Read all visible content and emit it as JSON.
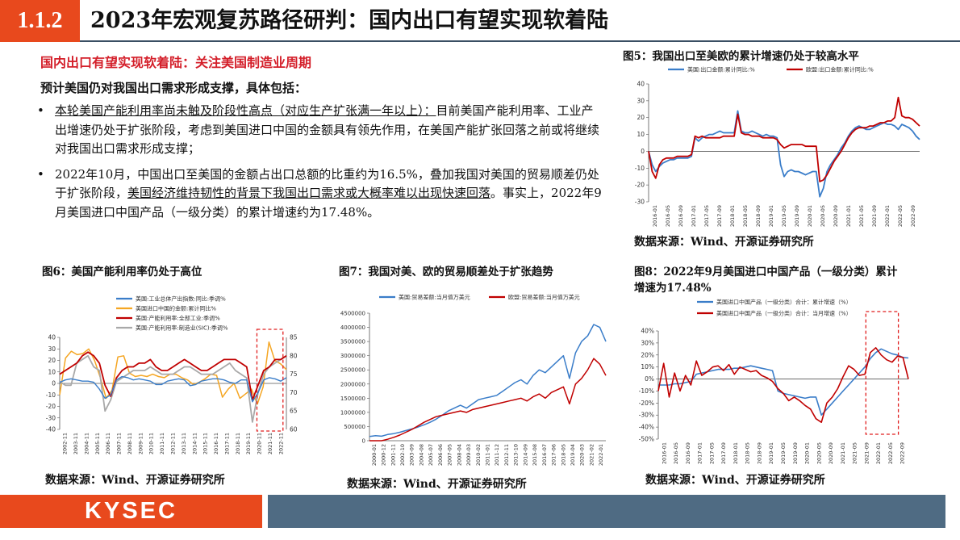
{
  "header": {
    "section": "1.1.2",
    "title": "2023年宏观复苏路径研判：国内出口有望实现软着陆"
  },
  "subheading": "国内出口有望实现软着陆：关注美国制造业周期",
  "lead": "预计美国仍对我国出口需求形成支撑，具体包括：",
  "bullet_symbol": "•",
  "bullets": [
    {
      "u": "本轮美国产能利用率尚未触及阶段性高点（对应生产扩张满一年以上）：",
      "t": "目前美国产能利用率、工业产出增速仍处于扩张阶段，考虑到美国进口中国的金额具有领先作用，在美国产能扩张回落之前或将继续对我国出口需求形成支撑；"
    },
    {
      "t1": "2022年10月，中国出口至美国的金额占出口总额的比重约为16.5%，叠加我国对美国的贸易顺差仍处于扩张阶段，",
      "u": "美国经济维持韧性的背景下我国出口需求或大概率难以出现快速回落",
      "t2": "。事实上，2022年9月美国进口中国产品（一级分类）的累计增速约为17.48%。"
    }
  ],
  "figures": {
    "fig5": "图5：我国出口至美欧的累计增速仍处于较高水平",
    "fig6": "图6：美国产能利用率仍处于高位",
    "fig7": "图7：我国对美、欧的贸易顺差处于扩张趋势",
    "fig8_line1": "图8：2022年9月美国进口中国产品（一级分类）累计",
    "fig8_line2": "增速为17.48%"
  },
  "source": "数据来源：Wind、开源证券研究所",
  "footer": {
    "logo": "KYSEC"
  },
  "colors": {
    "accent": "#e8491d",
    "navy": "#3a4f63",
    "red": "#c00000",
    "blue": "#3a7dc9",
    "orange": "#f5a623",
    "grey": "#a9a9a9",
    "footer_grey": "#4f6b83"
  },
  "chart_data": [
    {
      "id": "fig5",
      "type": "line",
      "series": [
        {
          "name": "美国:出口金额:累计同比:%",
          "color": "#3a7dc9"
        },
        {
          "name": "欧盟:出口金额:累计同比:%",
          "color": "#c00000"
        }
      ],
      "x_ticks": [
        "2016-01",
        "2016-05",
        "2016-09",
        "2017-01",
        "2017-05",
        "2017-09",
        "2018-01",
        "2018-05",
        "2018-09",
        "2019-01",
        "2019-05",
        "2019-09",
        "2020-01",
        "2020-05",
        "2020-09",
        "2021-01",
        "2021-05",
        "2021-09",
        "2022-01",
        "2022-05",
        "2022-09"
      ],
      "ylim": [
        -30,
        40
      ],
      "y_ticks": [
        40,
        30,
        20,
        10,
        0,
        -10,
        -20,
        -30
      ],
      "us": [
        0,
        -8,
        -12,
        -9,
        -7,
        -6,
        -5,
        -5,
        -4,
        -4,
        -4,
        -4,
        -3,
        8,
        6,
        8,
        9,
        10,
        10,
        11,
        12,
        11,
        11,
        11,
        11,
        24,
        12,
        11,
        11,
        12,
        11,
        10,
        9,
        10,
        9,
        9,
        8,
        -8,
        -15,
        -12,
        -11,
        -12,
        -12,
        -13,
        -14,
        -13,
        -12,
        -12,
        -27,
        -22,
        -12,
        -8,
        -5,
        -2,
        2,
        5,
        9,
        12,
        14,
        15,
        14,
        13,
        13,
        14,
        15,
        16,
        17,
        16,
        16,
        15,
        13,
        16,
        15,
        14,
        12,
        9,
        7
      ],
      "eu": [
        0,
        -12,
        -16,
        -8,
        -5,
        -4,
        -4,
        -4,
        -3,
        -3,
        -3,
        -3,
        -2,
        9,
        8,
        9,
        8,
        8,
        8,
        8,
        8,
        9,
        9,
        9,
        9,
        22,
        11,
        10,
        10,
        9,
        9,
        9,
        8,
        8,
        8,
        8,
        7,
        4,
        2,
        3,
        4,
        4,
        4,
        4,
        3,
        3,
        3,
        3,
        -18,
        -17,
        -14,
        -10,
        -6,
        -3,
        0,
        4,
        8,
        11,
        13,
        14,
        14,
        14,
        15,
        15,
        16,
        17,
        17,
        18,
        18,
        20,
        32,
        21,
        20,
        20,
        19,
        17,
        15
      ]
    },
    {
      "id": "fig6",
      "type": "line",
      "series": [
        {
          "name": "美国:工业总体产出指数:同比:季调%",
          "color": "#3a7dc9",
          "axis": "left"
        },
        {
          "name": "美国进口中国的金额:累计同比%",
          "color": "#f5a623",
          "axis": "left"
        },
        {
          "name": "美国:产能利用率:全部工业:季调%",
          "color": "#c00000",
          "axis": "right"
        },
        {
          "name": "美国:产能利用率:制造业(SIC):季调%",
          "color": "#a9a9a9",
          "axis": "right"
        }
      ],
      "x_ticks": [
        "2002-11",
        "2003-11",
        "2004-11",
        "2005-11",
        "2006-11",
        "2007-11",
        "2008-11",
        "2009-11",
        "2010-11",
        "2011-11",
        "2012-11",
        "2013-11",
        "2014-11",
        "2015-11",
        "2016-11",
        "2017-11",
        "2018-11",
        "2019-11",
        "2020-11",
        "2021-11",
        "2022-11"
      ],
      "ylim_left": [
        -40,
        40
      ],
      "ylim_right": [
        60,
        85
      ],
      "y_ticks_left": [
        40,
        30,
        20,
        10,
        0,
        -10,
        -20,
        -30,
        -40
      ],
      "y_ticks_right": [
        85,
        80,
        75,
        70,
        65,
        60
      ],
      "ip": [
        1,
        3,
        4,
        3,
        2,
        2,
        1,
        -5,
        -13,
        -10,
        3,
        6,
        5,
        3,
        4,
        3,
        2,
        -1,
        -1,
        2,
        3,
        4,
        3,
        -2,
        -1,
        2,
        3,
        4,
        4,
        3,
        1,
        0,
        3,
        3,
        -16,
        -8,
        3,
        5,
        4,
        2,
        5
      ],
      "imp": [
        -10,
        22,
        28,
        25,
        26,
        30,
        20,
        5,
        -13,
        -6,
        23,
        24,
        9,
        6,
        7,
        6,
        8,
        6,
        5,
        8,
        8,
        5,
        3,
        -1,
        1,
        4,
        8,
        7,
        -12,
        -5,
        0,
        -13,
        -9,
        -5,
        -18,
        -3,
        36,
        20,
        17,
        12
      ],
      "cu": [
        75,
        76,
        77,
        78,
        80,
        81,
        80,
        78,
        72,
        69,
        74,
        76,
        77,
        77,
        78,
        78,
        79,
        77,
        76,
        76,
        77,
        78,
        79,
        78,
        77,
        76,
        76,
        77,
        78,
        79,
        79,
        79,
        78,
        77,
        68,
        72,
        76,
        77,
        79,
        79,
        80
      ],
      "mfg": [
        73,
        72,
        72,
        78,
        79,
        80,
        77,
        76,
        65,
        68,
        73,
        74,
        75,
        76,
        76,
        76,
        77,
        76,
        75,
        75,
        75,
        76,
        77,
        77,
        76,
        75,
        75,
        75,
        76,
        77,
        78,
        76,
        75,
        74,
        62,
        70,
        75,
        77,
        78,
        79,
        80
      ]
    },
    {
      "id": "fig7",
      "type": "line",
      "series": [
        {
          "name": "美国:贸易差额:当月值万美元",
          "color": "#3a7dc9"
        },
        {
          "name": "欧盟:贸易差额:当月值万美元",
          "color": "#c00000"
        }
      ],
      "x_ticks": [
        "2000-01",
        "2000-12",
        "2001-11",
        "2002-10",
        "2003-09",
        "2004-08",
        "2005-07",
        "2006-06",
        "2007-05",
        "2008-04",
        "2009-03",
        "2010-02",
        "2011-01",
        "2011-12",
        "2012-11",
        "2013-10",
        "2014-09",
        "2015-08",
        "2016-07",
        "2017-06",
        "2018-05",
        "2019-04",
        "2020-03",
        "2021-02",
        "2022-01"
      ],
      "ylim": [
        0,
        4500000
      ],
      "y_ticks": [
        4500000,
        4000000,
        3500000,
        3000000,
        2500000,
        2000000,
        1500000,
        1000000,
        500000,
        0
      ],
      "us": [
        150000,
        180000,
        160000,
        220000,
        250000,
        300000,
        360000,
        420000,
        480000,
        560000,
        650000,
        760000,
        900000,
        1050000,
        1150000,
        1250000,
        1150000,
        1300000,
        1450000,
        1500000,
        1550000,
        1600000,
        1750000,
        1900000,
        2050000,
        2150000,
        2000000,
        2300000,
        2500000,
        2400000,
        2600000,
        2800000,
        3000000,
        2200000,
        3100000,
        3500000,
        3700000,
        4100000,
        4000000,
        3500000
      ],
      "eu": [
        0,
        0,
        0,
        50000,
        120000,
        200000,
        300000,
        400000,
        520000,
        650000,
        750000,
        850000,
        900000,
        950000,
        1000000,
        1050000,
        1000000,
        1100000,
        1150000,
        1200000,
        1250000,
        1300000,
        1350000,
        1400000,
        1450000,
        1500000,
        1400000,
        1550000,
        1650000,
        1500000,
        1700000,
        1800000,
        1900000,
        1300000,
        2000000,
        2200000,
        2500000,
        2900000,
        2700000,
        2300000
      ]
    },
    {
      "id": "fig8",
      "type": "line",
      "series": [
        {
          "name": "美国进口中国产品（一级分类）合计：累计增速（%）",
          "color": "#3a7dc9"
        },
        {
          "name": "美国进口中国产品（一级分类）合计：当月增速（%）",
          "color": "#c00000"
        }
      ],
      "x_ticks": [
        "2016-01",
        "2016-05",
        "2016-09",
        "2017-01",
        "2017-05",
        "2017-09",
        "2018-01",
        "2018-05",
        "2018-09",
        "2019-01",
        "2019-05",
        "2019-09",
        "2020-01",
        "2020-05",
        "2020-09",
        "2021-01",
        "2021-05",
        "2021-09",
        "2022-01",
        "2022-05",
        "2022-09"
      ],
      "ylim": [
        -50,
        40
      ],
      "y_ticks": [
        40,
        30,
        20,
        10,
        0,
        -10,
        -20,
        -30,
        -40,
        -50
      ],
      "cum": [
        -5,
        -5,
        -5,
        -4,
        -4,
        -3,
        -2,
        4,
        5,
        6,
        7,
        8,
        8,
        8,
        9,
        9,
        10,
        11,
        10,
        9,
        8,
        7,
        -10,
        -12,
        -13,
        -14,
        -15,
        -16,
        -15,
        -15,
        -30,
        -25,
        -20,
        -15,
        -10,
        -5,
        0,
        5,
        10,
        17,
        22,
        25,
        23,
        21,
        20,
        18,
        17.48
      ],
      "mon": [
        -10,
        13,
        -15,
        5,
        -10,
        3,
        -5,
        15,
        3,
        6,
        10,
        11,
        7,
        12,
        4,
        10,
        8,
        6,
        7,
        3,
        1,
        -2,
        -8,
        -12,
        -18,
        -15,
        -18,
        -22,
        -25,
        -33,
        -36,
        -20,
        -15,
        -8,
        2,
        11,
        8,
        3,
        4,
        22,
        26,
        20,
        16,
        14,
        19,
        18,
        0
      ]
    }
  ]
}
